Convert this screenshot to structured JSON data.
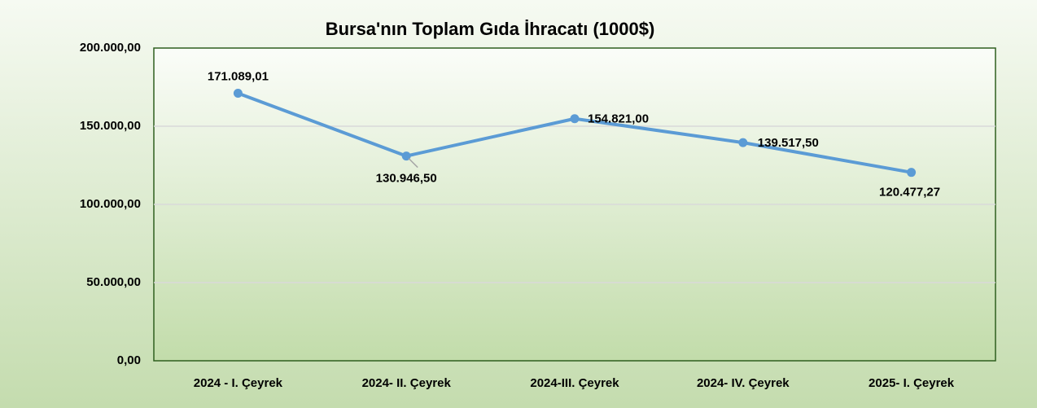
{
  "chart_data": {
    "type": "line",
    "title": "Bursa'nın Toplam Gıda İhracatı (1000$)",
    "categories": [
      "2024 - I. Çeyrek",
      "2024- II. Çeyrek",
      "2024-III. Çeyrek",
      "2024- IV. Çeyrek",
      "2025- I. Çeyrek"
    ],
    "series": [
      {
        "name": "Toplam Gıda İhracatı",
        "color": "#5b9bd5",
        "values": [
          171089.01,
          130946.5,
          154821.0,
          139517.5,
          120477.27
        ],
        "value_labels": [
          "171.089,01",
          "130.946,50",
          "154.821,00",
          "139.517,50",
          "120.477,27"
        ]
      }
    ],
    "ylim": [
      0,
      200000
    ],
    "yticks": [
      {
        "value": 0,
        "label": "0,00"
      },
      {
        "value": 50000,
        "label": "50.000,00"
      },
      {
        "value": 100000,
        "label": "100.000,00"
      },
      {
        "value": 150000,
        "label": "150.000,00"
      },
      {
        "value": 200000,
        "label": "200.000,00"
      }
    ],
    "grid": true
  }
}
